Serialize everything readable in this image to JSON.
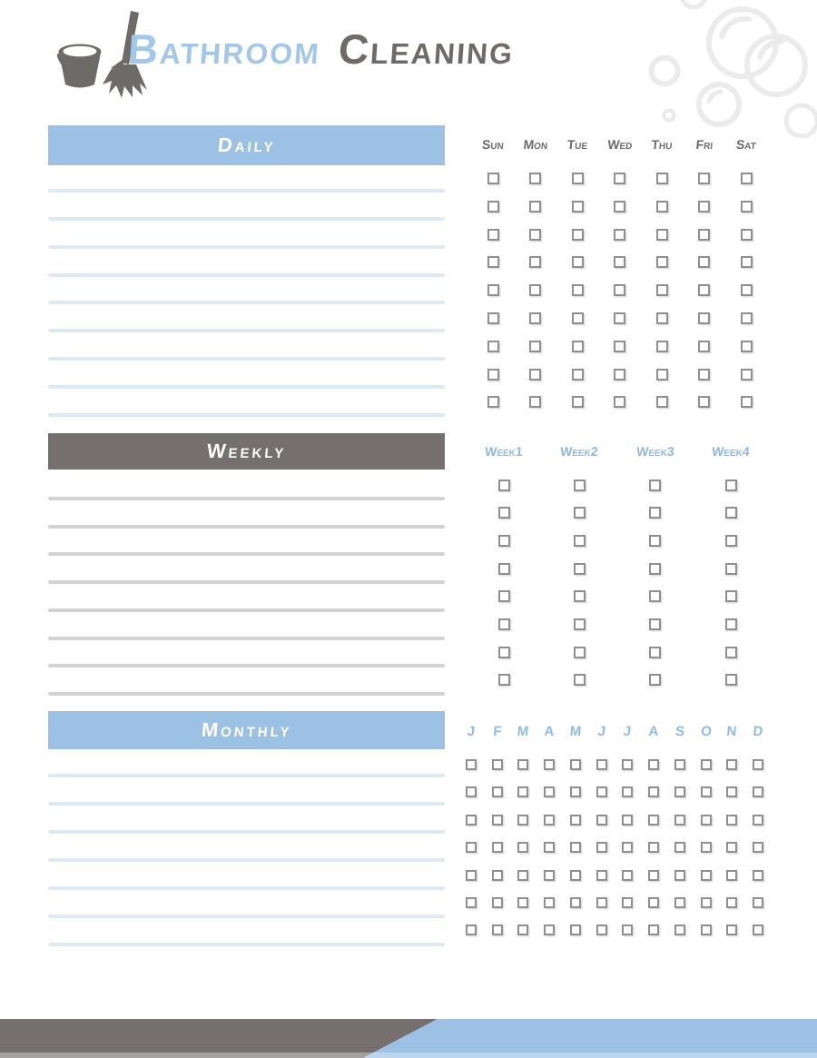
{
  "header": {
    "title_part1": "Bathroom",
    "title_part2": "Cleaning"
  },
  "sections": {
    "daily": {
      "title": "Daily",
      "columns": [
        "Sun",
        "Mon",
        "Tue",
        "Wed",
        "Thu",
        "Fri",
        "Sat"
      ],
      "checkbox_rows": 9,
      "writing_lines": 9,
      "checkbox_state": "all-unchecked"
    },
    "weekly": {
      "title": "Weekly",
      "columns": [
        "Week1",
        "Week2",
        "Week3",
        "Week4"
      ],
      "checkbox_rows": 8,
      "writing_lines": 8,
      "checkbox_state": "all-unchecked"
    },
    "monthly": {
      "title": "Monthly",
      "columns": [
        "J",
        "F",
        "M",
        "A",
        "M",
        "J",
        "J",
        "A",
        "S",
        "O",
        "N",
        "D"
      ],
      "checkbox_rows": 7,
      "writing_lines": 7,
      "checkbox_state": "all-unchecked"
    }
  },
  "icons": {
    "logo": "bucket-and-broom-icon",
    "decor": "soap-bubbles"
  },
  "colors": {
    "accent_blue": "#9cc1e4",
    "accent_gray": "#75706d",
    "title_blue": "#a3c7ea",
    "title_gray": "#6e6a67",
    "line_blue": "#dde9f5",
    "line_gray": "#d3d3d3",
    "label_gray": "#6f6b68",
    "label_blue_week": "#90b7e0",
    "label_blue_month": "#8fbbe5",
    "checkbox_border": "#8f8f8f",
    "bubble_gray": "#ebebeb"
  }
}
